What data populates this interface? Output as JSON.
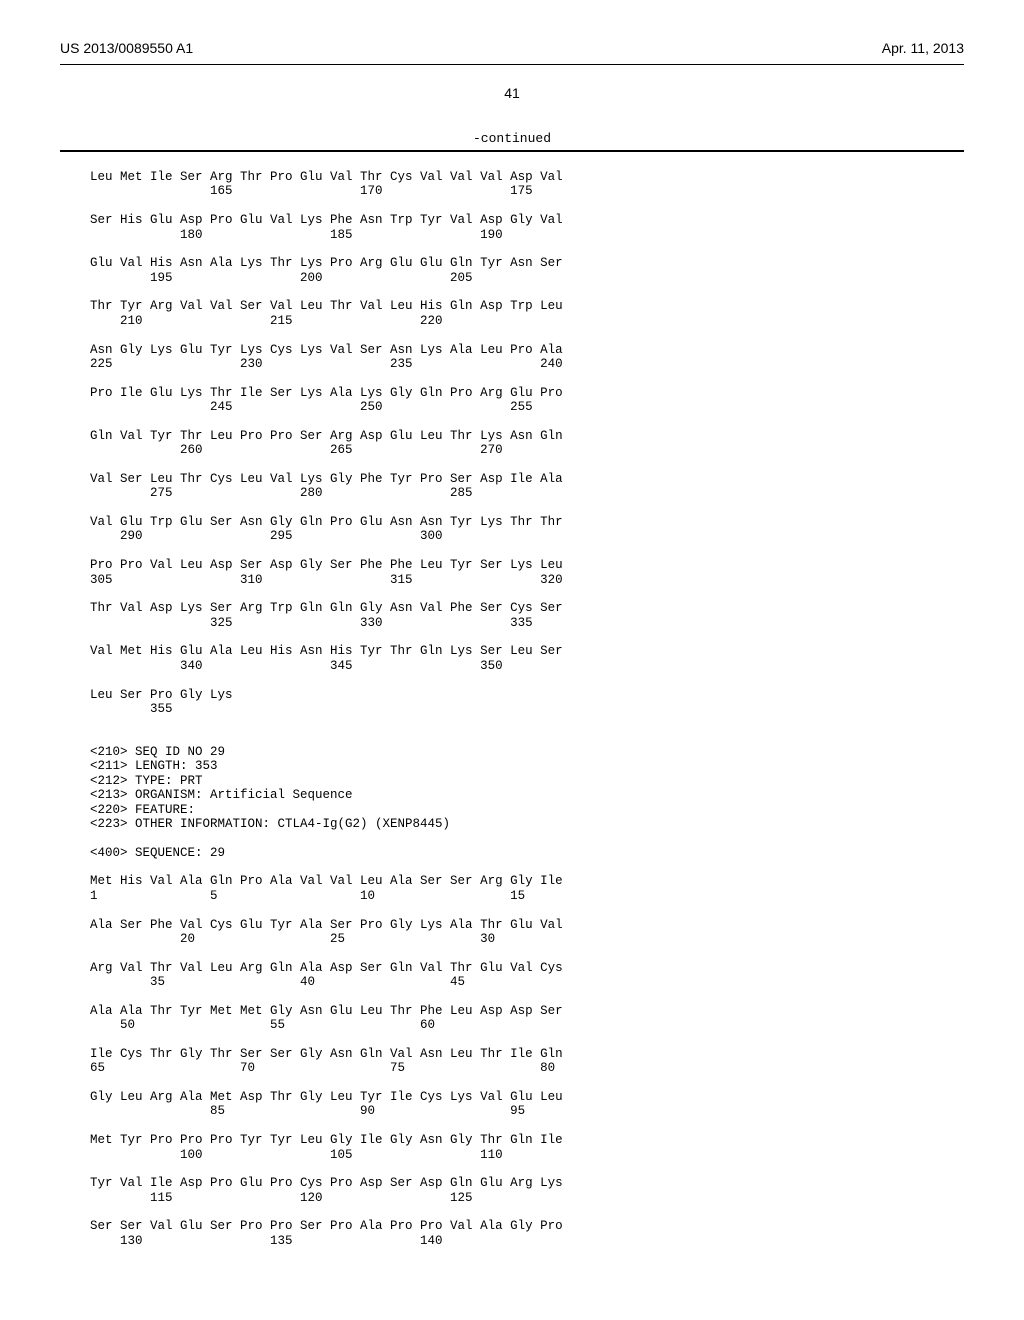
{
  "header": {
    "left": "US 2013/0089550 A1",
    "right": "Apr. 11, 2013"
  },
  "page_number": "41",
  "continued_label": "-continued",
  "seq_block_1": {
    "rows": [
      {
        "aa": "Leu Met Ile Ser Arg Thr Pro Glu Val Thr Cys Val Val Val Asp Val",
        "nums": "                165                 170                 175"
      },
      {
        "aa": "Ser His Glu Asp Pro Glu Val Lys Phe Asn Trp Tyr Val Asp Gly Val",
        "nums": "            180                 185                 190"
      },
      {
        "aa": "Glu Val His Asn Ala Lys Thr Lys Pro Arg Glu Glu Gln Tyr Asn Ser",
        "nums": "        195                 200                 205"
      },
      {
        "aa": "Thr Tyr Arg Val Val Ser Val Leu Thr Val Leu His Gln Asp Trp Leu",
        "nums": "    210                 215                 220"
      },
      {
        "aa": "Asn Gly Lys Glu Tyr Lys Cys Lys Val Ser Asn Lys Ala Leu Pro Ala",
        "nums": "225                 230                 235                 240"
      },
      {
        "aa": "Pro Ile Glu Lys Thr Ile Ser Lys Ala Lys Gly Gln Pro Arg Glu Pro",
        "nums": "                245                 250                 255"
      },
      {
        "aa": "Gln Val Tyr Thr Leu Pro Pro Ser Arg Asp Glu Leu Thr Lys Asn Gln",
        "nums": "            260                 265                 270"
      },
      {
        "aa": "Val Ser Leu Thr Cys Leu Val Lys Gly Phe Tyr Pro Ser Asp Ile Ala",
        "nums": "        275                 280                 285"
      },
      {
        "aa": "Val Glu Trp Glu Ser Asn Gly Gln Pro Glu Asn Asn Tyr Lys Thr Thr",
        "nums": "    290                 295                 300"
      },
      {
        "aa": "Pro Pro Val Leu Asp Ser Asp Gly Ser Phe Phe Leu Tyr Ser Lys Leu",
        "nums": "305                 310                 315                 320"
      },
      {
        "aa": "Thr Val Asp Lys Ser Arg Trp Gln Gln Gly Asn Val Phe Ser Cys Ser",
        "nums": "                325                 330                 335"
      },
      {
        "aa": "Val Met His Glu Ala Leu His Asn His Tyr Thr Gln Lys Ser Leu Ser",
        "nums": "            340                 345                 350"
      },
      {
        "aa": "Leu Ser Pro Gly Lys",
        "nums": "        355"
      }
    ]
  },
  "meta_block": {
    "lines": [
      "<210> SEQ ID NO 29",
      "<211> LENGTH: 353",
      "<212> TYPE: PRT",
      "<213> ORGANISM: Artificial Sequence",
      "<220> FEATURE:",
      "<223> OTHER INFORMATION: CTLA4-Ig(G2) (XENP8445)",
      "",
      "<400> SEQUENCE: 29"
    ]
  },
  "seq_block_2": {
    "rows": [
      {
        "aa": "Met His Val Ala Gln Pro Ala Val Val Leu Ala Ser Ser Arg Gly Ile",
        "nums": "1               5                   10                  15"
      },
      {
        "aa": "Ala Ser Phe Val Cys Glu Tyr Ala Ser Pro Gly Lys Ala Thr Glu Val",
        "nums": "            20                  25                  30"
      },
      {
        "aa": "Arg Val Thr Val Leu Arg Gln Ala Asp Ser Gln Val Thr Glu Val Cys",
        "nums": "        35                  40                  45"
      },
      {
        "aa": "Ala Ala Thr Tyr Met Met Gly Asn Glu Leu Thr Phe Leu Asp Asp Ser",
        "nums": "    50                  55                  60"
      },
      {
        "aa": "Ile Cys Thr Gly Thr Ser Ser Gly Asn Gln Val Asn Leu Thr Ile Gln",
        "nums": "65                  70                  75                  80"
      },
      {
        "aa": "Gly Leu Arg Ala Met Asp Thr Gly Leu Tyr Ile Cys Lys Val Glu Leu",
        "nums": "                85                  90                  95"
      },
      {
        "aa": "Met Tyr Pro Pro Pro Tyr Tyr Leu Gly Ile Gly Asn Gly Thr Gln Ile",
        "nums": "            100                 105                 110"
      },
      {
        "aa": "Tyr Val Ile Asp Pro Glu Pro Cys Pro Asp Ser Asp Gln Glu Arg Lys",
        "nums": "        115                 120                 125"
      },
      {
        "aa": "Ser Ser Val Glu Ser Pro Pro Ser Pro Ala Pro Pro Val Ala Gly Pro",
        "nums": "    130                 135                 140"
      }
    ]
  }
}
